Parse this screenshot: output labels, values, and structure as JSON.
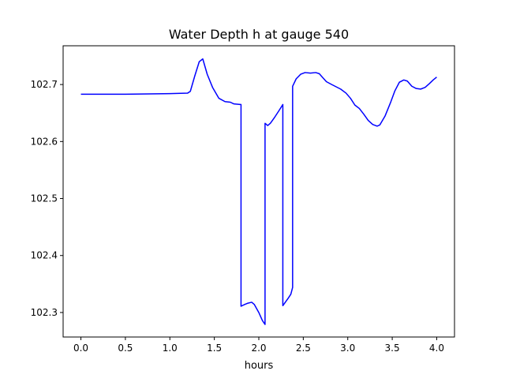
{
  "chart_data": {
    "type": "line",
    "title": "Water Depth h at gauge 540",
    "xlabel": "hours",
    "ylabel": "",
    "xlim": [
      -0.2,
      4.2
    ],
    "ylim": [
      102.257,
      102.768
    ],
    "xticks": [
      {
        "value": 0.0,
        "label": "0.0"
      },
      {
        "value": 0.5,
        "label": "0.5"
      },
      {
        "value": 1.0,
        "label": "1.0"
      },
      {
        "value": 1.5,
        "label": "1.5"
      },
      {
        "value": 2.0,
        "label": "2.0"
      },
      {
        "value": 2.5,
        "label": "2.5"
      },
      {
        "value": 3.0,
        "label": "3.0"
      },
      {
        "value": 3.5,
        "label": "3.5"
      },
      {
        "value": 4.0,
        "label": "4.0"
      }
    ],
    "yticks": [
      {
        "value": 102.3,
        "label": "102.3"
      },
      {
        "value": 102.4,
        "label": "102.4"
      },
      {
        "value": 102.5,
        "label": "102.5"
      },
      {
        "value": 102.6,
        "label": "102.6"
      },
      {
        "value": 102.7,
        "label": "102.7"
      }
    ],
    "grid": false,
    "legend": "none",
    "series": [
      {
        "color": "#0000ff",
        "points": [
          [
            0.0,
            102.683
          ],
          [
            0.5,
            102.683
          ],
          [
            1.0,
            102.684
          ],
          [
            1.2,
            102.685
          ],
          [
            1.23,
            102.688
          ],
          [
            1.28,
            102.715
          ],
          [
            1.33,
            102.74
          ],
          [
            1.37,
            102.745
          ],
          [
            1.42,
            102.718
          ],
          [
            1.48,
            102.695
          ],
          [
            1.55,
            102.676
          ],
          [
            1.62,
            102.67
          ],
          [
            1.68,
            102.669
          ],
          [
            1.72,
            102.666
          ],
          [
            1.79,
            102.665
          ],
          [
            1.8,
            102.665
          ],
          [
            1.8,
            102.311
          ],
          [
            1.84,
            102.314
          ],
          [
            1.87,
            102.316
          ],
          [
            1.92,
            102.318
          ],
          [
            1.95,
            102.314
          ],
          [
            2.0,
            102.3
          ],
          [
            2.04,
            102.286
          ],
          [
            2.07,
            102.279
          ],
          [
            2.07,
            102.632
          ],
          [
            2.1,
            102.628
          ],
          [
            2.13,
            102.632
          ],
          [
            2.18,
            102.643
          ],
          [
            2.23,
            102.655
          ],
          [
            2.27,
            102.665
          ],
          [
            2.27,
            102.312
          ],
          [
            2.33,
            102.325
          ],
          [
            2.36,
            102.332
          ],
          [
            2.38,
            102.344
          ],
          [
            2.38,
            102.697
          ],
          [
            2.42,
            102.71
          ],
          [
            2.47,
            102.718
          ],
          [
            2.52,
            102.721
          ],
          [
            2.58,
            102.72
          ],
          [
            2.64,
            102.721
          ],
          [
            2.68,
            102.719
          ],
          [
            2.72,
            102.712
          ],
          [
            2.76,
            102.705
          ],
          [
            2.82,
            102.7
          ],
          [
            2.87,
            102.696
          ],
          [
            2.92,
            102.692
          ],
          [
            2.98,
            102.685
          ],
          [
            3.03,
            102.676
          ],
          [
            3.08,
            102.664
          ],
          [
            3.13,
            102.658
          ],
          [
            3.18,
            102.648
          ],
          [
            3.23,
            102.637
          ],
          [
            3.28,
            102.63
          ],
          [
            3.33,
            102.627
          ],
          [
            3.36,
            102.629
          ],
          [
            3.42,
            102.645
          ],
          [
            3.48,
            102.668
          ],
          [
            3.53,
            102.689
          ],
          [
            3.58,
            102.704
          ],
          [
            3.63,
            102.708
          ],
          [
            3.67,
            102.706
          ],
          [
            3.72,
            102.697
          ],
          [
            3.77,
            102.693
          ],
          [
            3.82,
            102.692
          ],
          [
            3.87,
            102.695
          ],
          [
            3.92,
            102.702
          ],
          [
            3.96,
            102.708
          ],
          [
            4.0,
            102.713
          ]
        ]
      }
    ]
  }
}
